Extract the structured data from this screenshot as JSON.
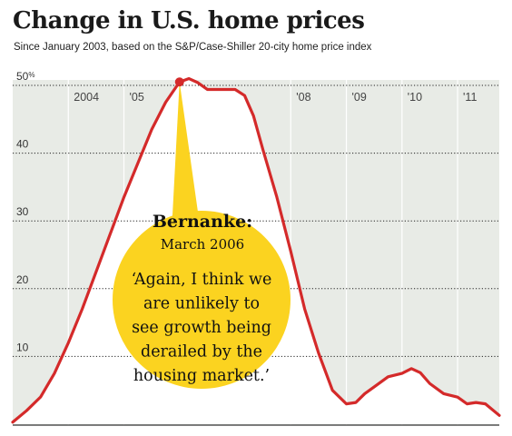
{
  "chart_data": {
    "type": "line",
    "title": "Change in U.S. home prices",
    "subtitle": "Since January 2003, based on the S&P/Case-Shiller 20-city home price index",
    "ylim": [
      0,
      50
    ],
    "y_ticks": [
      {
        "value": 10,
        "label": "10"
      },
      {
        "value": 20,
        "label": "20"
      },
      {
        "value": 30,
        "label": "30"
      },
      {
        "value": 40,
        "label": "40"
      },
      {
        "value": 50,
        "label": "50",
        "suffix": "%"
      }
    ],
    "x_ticks": [
      {
        "value": 2004.0,
        "label": "2004"
      },
      {
        "value": 2005.0,
        "label": "'05"
      },
      {
        "value": 2008.0,
        "label": "'08"
      },
      {
        "value": 2009.0,
        "label": "'09"
      },
      {
        "value": 2010.0,
        "label": "'10"
      },
      {
        "value": 2011.0,
        "label": "'11"
      }
    ],
    "xlim": [
      2003.0,
      2011.75
    ],
    "grid": true,
    "series": [
      {
        "x": [
          2003.0,
          2003.25,
          2003.5,
          2003.75,
          2004.0,
          2004.25,
          2004.5,
          2004.75,
          2005.0,
          2005.25,
          2005.5,
          2005.75,
          2006.0,
          2006.17,
          2006.33,
          2006.5,
          2006.75,
          2007.0,
          2007.17,
          2007.33,
          2007.5,
          2007.75,
          2008.0,
          2008.25,
          2008.5,
          2008.75,
          2009.0,
          2009.17,
          2009.33,
          2009.5,
          2009.75,
          2010.0,
          2010.17,
          2010.33,
          2010.5,
          2010.75,
          2011.0,
          2011.17,
          2011.33,
          2011.5,
          2011.75
        ],
        "y": [
          0.3,
          2.0,
          4.0,
          7.5,
          12.0,
          17.0,
          22.5,
          28.0,
          33.5,
          38.5,
          43.5,
          47.5,
          50.5,
          51.0,
          50.4,
          49.4,
          49.4,
          49.4,
          48.5,
          45.5,
          40.5,
          33.5,
          25.5,
          17.0,
          10.5,
          5.0,
          3.0,
          3.2,
          4.5,
          5.5,
          7.0,
          7.5,
          8.2,
          7.6,
          6.0,
          4.5,
          4.0,
          3.0,
          3.2,
          3.0,
          1.3
        ]
      }
    ],
    "highlight_point": {
      "x": 2006.0,
      "y": 50.5
    },
    "annotation": {
      "title": "Bernanke:",
      "date": "March 2006",
      "quote_lines": [
        "‘Again, I think we",
        "are unlikely to",
        "see growth being",
        "derailed by the",
        "housing market.’"
      ]
    },
    "colors": {
      "line": "#d42a2a",
      "under_fill": "#ffffff",
      "plot_bg": "#e8ebe6",
      "bubble": "#fbd320",
      "grid": "#222222"
    }
  }
}
